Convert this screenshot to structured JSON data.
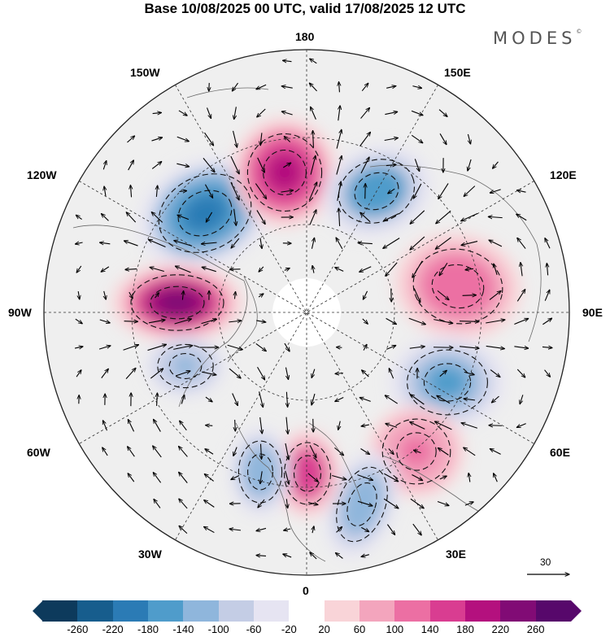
{
  "title": "Base 10/08/2025 00 UTC, valid 17/08/2025 12 UTC",
  "brand": "MODES",
  "brand_mark": "©",
  "longitude_labels": {
    "n180": "180",
    "w150": "150W",
    "e150": "150E",
    "w120": "120W",
    "e120": "120E",
    "w90": "90W",
    "e90": "90E",
    "w60": "60W",
    "e60": "60E",
    "w30": "30W",
    "e30": "30E",
    "s0": "0"
  },
  "vector_scale_label": "30",
  "colorbar": {
    "colors": [
      "#0d3a5c",
      "#175d8d",
      "#2b7bb5",
      "#4f9ccb",
      "#8fb6dc",
      "#c4cde5",
      "#e6e4f2",
      "#ffffff",
      "#f9d4d8",
      "#f3a5bd",
      "#ec6fa3",
      "#d93d91",
      "#b4107e",
      "#810b75",
      "#57086b"
    ],
    "labels": [
      "-260",
      "-220",
      "-180",
      "-140",
      "-100",
      "-60",
      "-20",
      "20",
      "60",
      "100",
      "140",
      "180",
      "220",
      "260"
    ]
  },
  "anomaly_centers": [
    {
      "name": "low-120W",
      "value": -200
    },
    {
      "name": "high-160W",
      "value": 190
    },
    {
      "name": "low-150E",
      "value": -170
    },
    {
      "name": "high-95W",
      "value": 230
    },
    {
      "name": "high-95E",
      "value": 130
    },
    {
      "name": "low-70E",
      "value": -160
    },
    {
      "name": "high-40E",
      "value": 110
    },
    {
      "name": "low-15E",
      "value": -130
    },
    {
      "name": "high-0",
      "value": 170
    },
    {
      "name": "low-20W",
      "value": -120
    },
    {
      "name": "low-80W",
      "value": -110
    }
  ]
}
